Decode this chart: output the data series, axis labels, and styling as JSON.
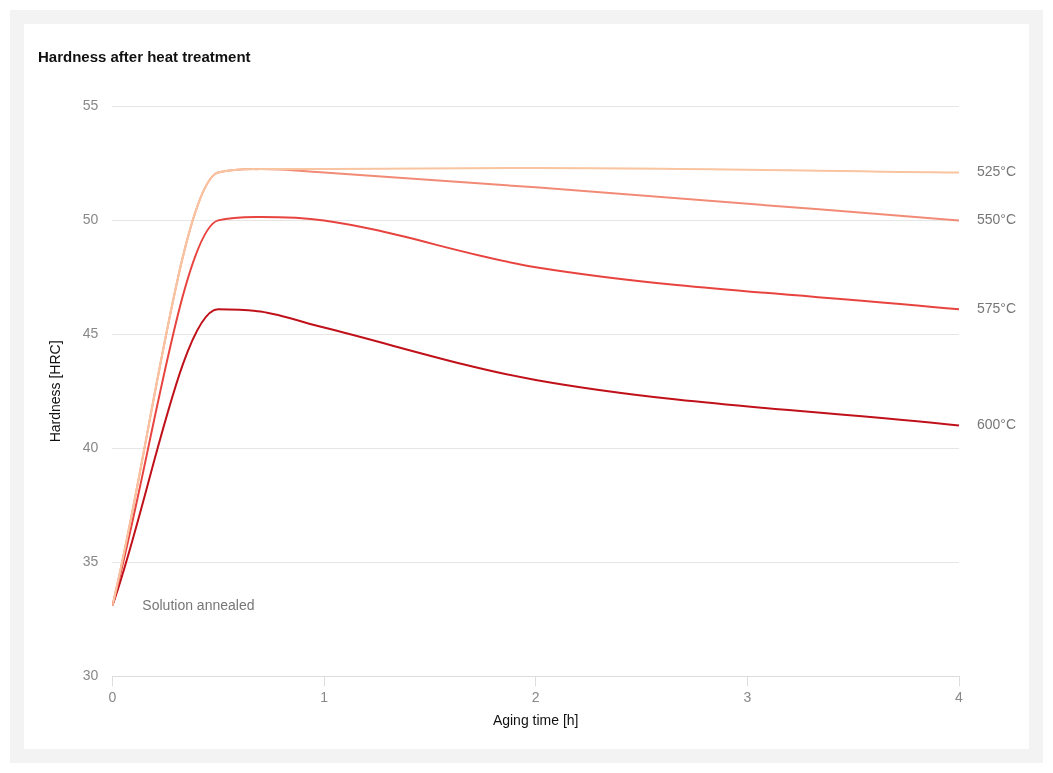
{
  "chart_data": {
    "type": "line",
    "title": "Hardness after heat treatment",
    "xlabel": "Aging time [h]",
    "ylabel": "Hardness [HRC]",
    "xlim": [
      0,
      4
    ],
    "xticks": [
      0,
      1,
      2,
      3,
      4
    ],
    "ylim": [
      30,
      55
    ],
    "yticks": [
      30,
      35,
      40,
      45,
      50,
      55
    ],
    "grid": "y",
    "legend": false,
    "marker": "none",
    "line_style": "solid",
    "annotations": [
      {
        "text": "Solution annealed",
        "x": 0,
        "y": 33.1
      }
    ],
    "series": [
      {
        "name": "525°C",
        "color": "#f9c4a0",
        "x": [
          0,
          0.5,
          0.7,
          1,
          2,
          4
        ],
        "values": [
          33.1,
          52.1,
          52.25,
          52.25,
          52.3,
          52.1
        ]
      },
      {
        "name": "550°C",
        "color": "#f28b76",
        "x": [
          0,
          0.5,
          0.7,
          1,
          2,
          4
        ],
        "values": [
          33.1,
          52.1,
          52.25,
          52.1,
          51.45,
          50.0
        ]
      },
      {
        "name": "575°C",
        "color": "#e8443f",
        "x": [
          0,
          0.5,
          0.7,
          1,
          2,
          4
        ],
        "values": [
          33.1,
          50.0,
          50.15,
          50.0,
          47.95,
          46.1
        ]
      },
      {
        "name": "600°C",
        "color": "#c0111a",
        "x": [
          0,
          0.5,
          0.7,
          1,
          2,
          4
        ],
        "values": [
          33.1,
          46.1,
          46.0,
          45.3,
          43.0,
          41.0
        ]
      }
    ]
  }
}
